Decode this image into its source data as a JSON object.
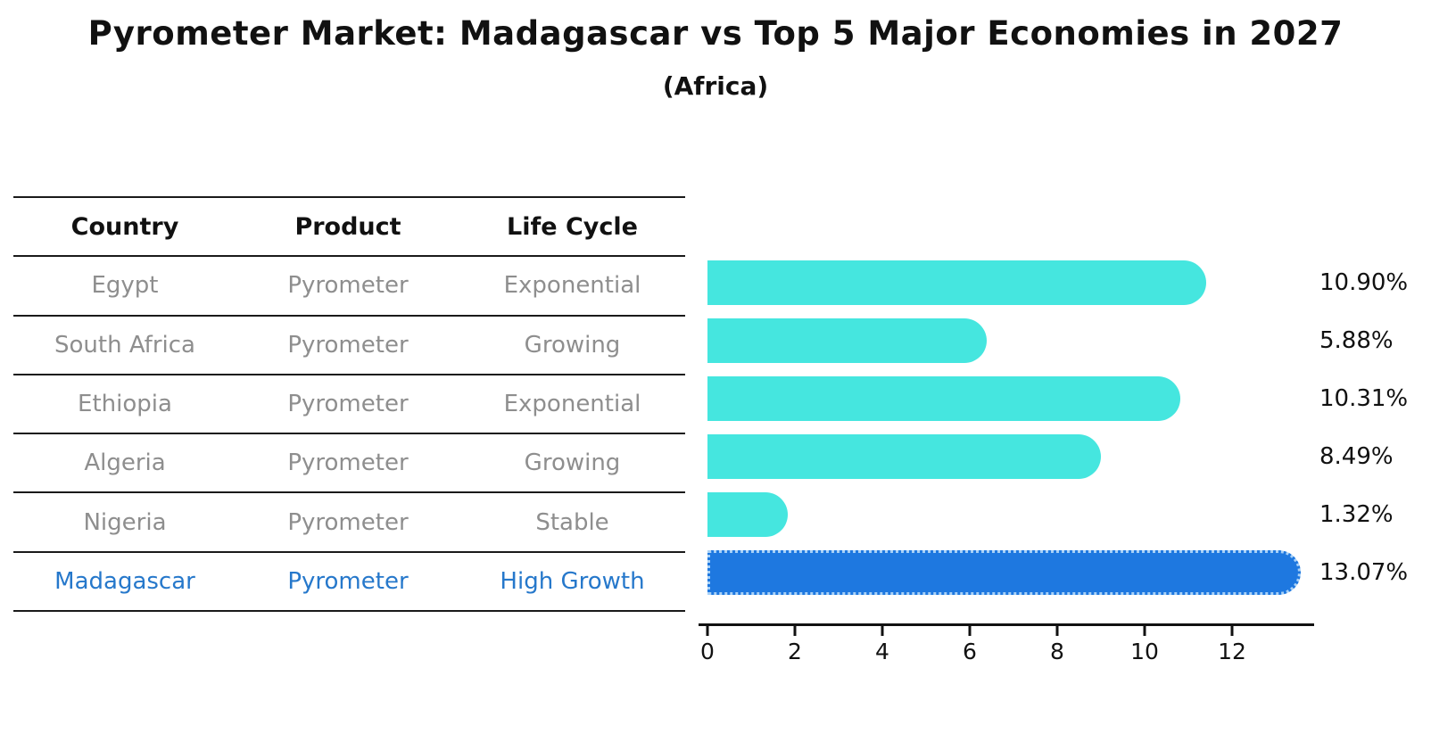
{
  "header": {
    "title": "Pyrometer Market: Madagascar vs Top 5 Major Economies in 2027",
    "subtitle": "(Africa)"
  },
  "table": {
    "columns": [
      "Country",
      "Product",
      "Life Cycle"
    ],
    "rows": [
      {
        "country": "Egypt",
        "product": "Pyrometer",
        "life_cycle": "Exponential",
        "highlight": false
      },
      {
        "country": "South Africa",
        "product": "Pyrometer",
        "life_cycle": "Growing",
        "highlight": false
      },
      {
        "country": "Ethiopia",
        "product": "Pyrometer",
        "life_cycle": "Exponential",
        "highlight": false
      },
      {
        "country": "Algeria",
        "product": "Pyrometer",
        "life_cycle": "Growing",
        "highlight": false
      },
      {
        "country": "Nigeria",
        "product": "Pyrometer",
        "life_cycle": "Stable",
        "highlight": false
      },
      {
        "country": "Madagascar",
        "product": "Pyrometer",
        "life_cycle": "High Growth",
        "highlight": true
      }
    ]
  },
  "chart_data": {
    "type": "bar",
    "orientation": "horizontal",
    "title": "Pyrometer Market: Madagascar vs Top 5 Major Economies in 2027",
    "subtitle": "(Africa)",
    "categories": [
      "Egypt",
      "South Africa",
      "Ethiopia",
      "Algeria",
      "Nigeria",
      "Madagascar"
    ],
    "values": [
      10.9,
      5.88,
      10.31,
      8.49,
      1.32,
      13.07
    ],
    "labels": [
      "10.90%",
      "5.88%",
      "10.31%",
      "8.49%",
      "1.32%",
      "13.07%"
    ],
    "xticks": [
      0,
      2,
      4,
      6,
      8,
      10,
      12
    ],
    "xlim": [
      0,
      13.8
    ],
    "grid": false,
    "legend": false,
    "bar_color": "#45e6df",
    "highlight_color": "#1e78e0",
    "highlight_index": 5
  },
  "colors": {
    "muted_text": "#8e8e8e",
    "highlight_text": "#2678cb",
    "line": "#1a1a1a"
  }
}
